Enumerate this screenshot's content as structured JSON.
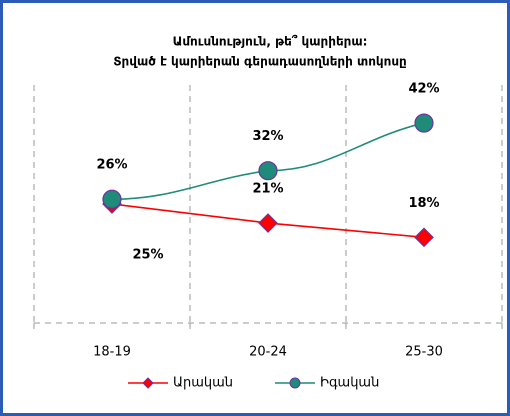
{
  "chart_data": {
    "type": "line",
    "title": [
      "Ամուսնություն, թե՞ կարիերա:",
      "Տրված է կարիերան գերադասողների տոկոսը"
    ],
    "categories": [
      "18-19",
      "20-24",
      "25-30"
    ],
    "series": [
      {
        "name": "Արական",
        "color": "#ff0000",
        "marker": "diamond",
        "values": [
          25,
          21,
          18
        ],
        "value_labels": [
          "25%",
          "21%",
          "18%"
        ]
      },
      {
        "name": "Իգական",
        "color": "#1e8c78",
        "marker": "circle",
        "values": [
          26,
          32,
          42
        ],
        "value_labels": [
          "26%",
          "32%",
          "42%"
        ]
      }
    ],
    "ylim": [
      0,
      50
    ],
    "legend": "bottom"
  }
}
